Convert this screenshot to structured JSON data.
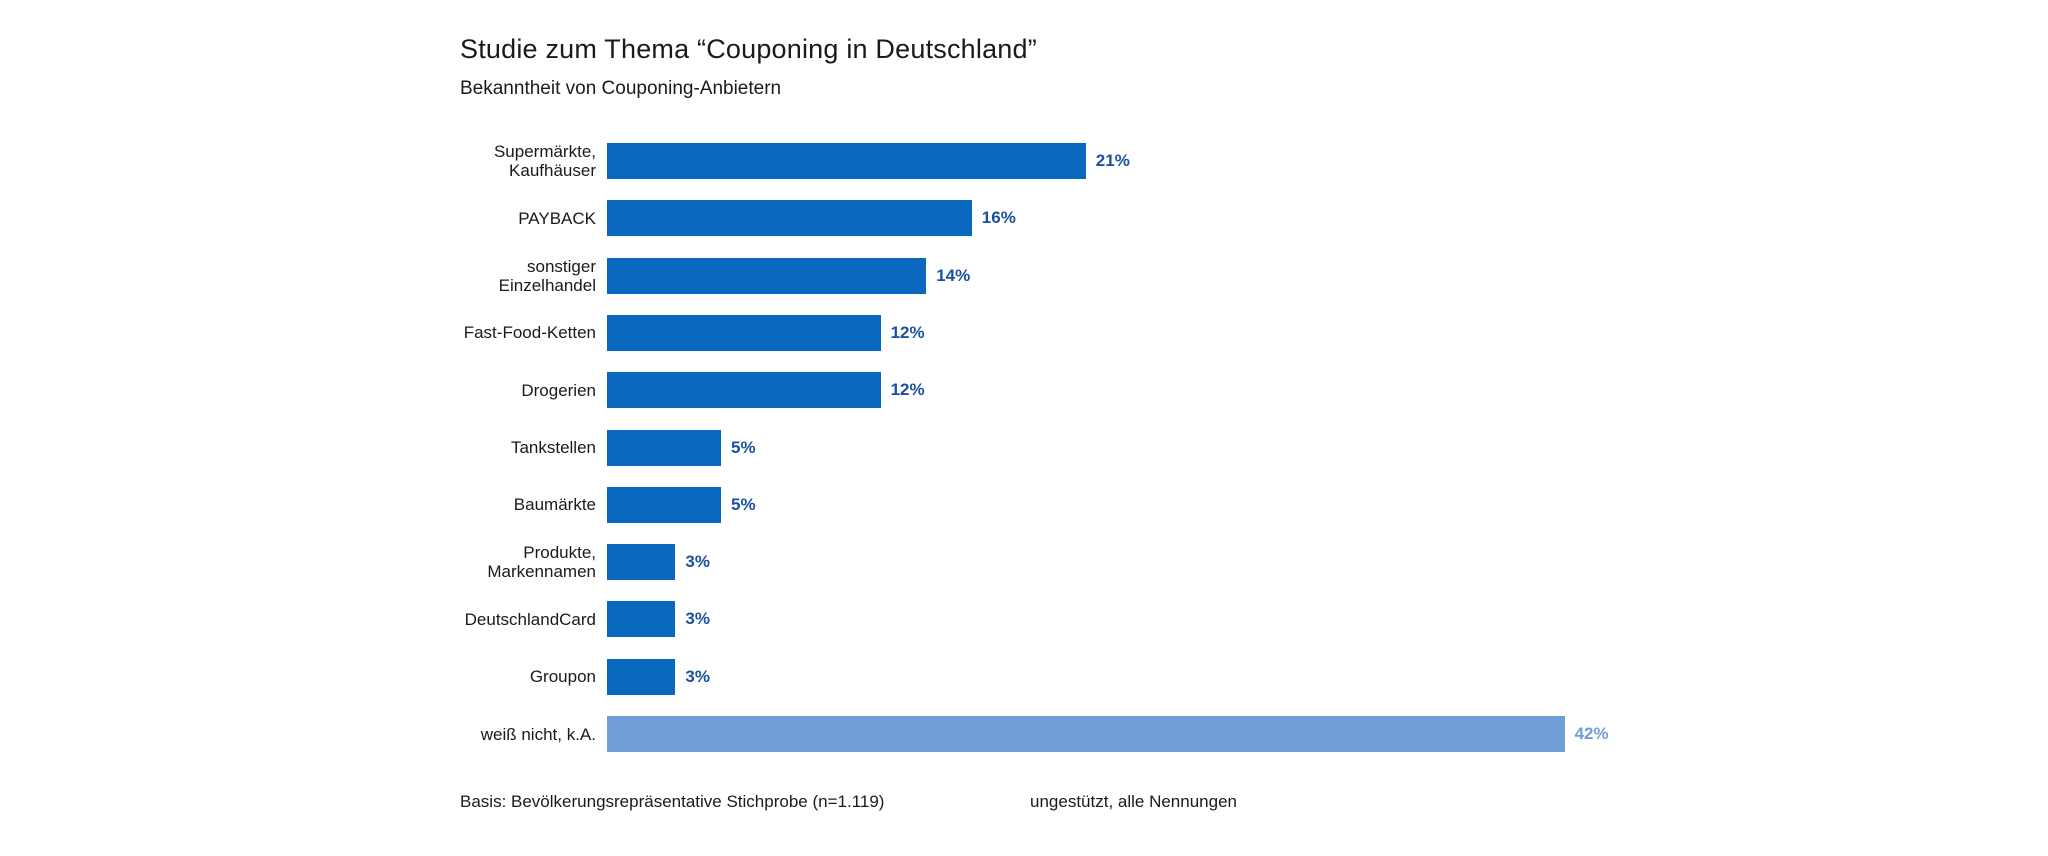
{
  "header": {
    "title": "Studie zum Thema “Couponing in Deutschland”",
    "subtitle": "Bekanntheit von Couponing-Anbietern"
  },
  "chart_data": {
    "type": "bar",
    "orientation": "horizontal",
    "title": "Studie zum Thema “Couponing in Deutschland”",
    "subtitle": "Bekanntheit von Couponing-Anbietern",
    "categories": [
      "Supermärkte,\nKaufhäuser",
      "PAYBACK",
      "sonstiger\nEinzelhandel",
      "Fast-Food-Ketten",
      "Drogerien",
      "Tankstellen",
      "Baumärkte",
      "Produkte,\nMarkennamen",
      "DeutschlandCard",
      "Groupon",
      "weiß nicht, k.A."
    ],
    "values": [
      21,
      16,
      14,
      12,
      12,
      5,
      5,
      3,
      3,
      3,
      42
    ],
    "value_labels": [
      "21%",
      "16%",
      "14%",
      "12%",
      "12%",
      "5%",
      "5%",
      "3%",
      "3%",
      "3%",
      "42%"
    ],
    "muted_index": 10,
    "xlim": [
      0,
      45
    ],
    "xlabel": "",
    "ylabel": "",
    "grid": false,
    "legend": "none",
    "colors": {
      "bar": "#0a69be",
      "bar_muted": "#6f9fd6",
      "value_text": "#1b519e",
      "value_text_muted": "#6f9fd6",
      "text": "#1a1a1a",
      "background": "#ffffff"
    }
  },
  "footer": {
    "left": "Basis: Bevölkerungsrepräsentative Stichprobe (n=1.119)",
    "right": "ungestützt, alle Nennungen"
  }
}
